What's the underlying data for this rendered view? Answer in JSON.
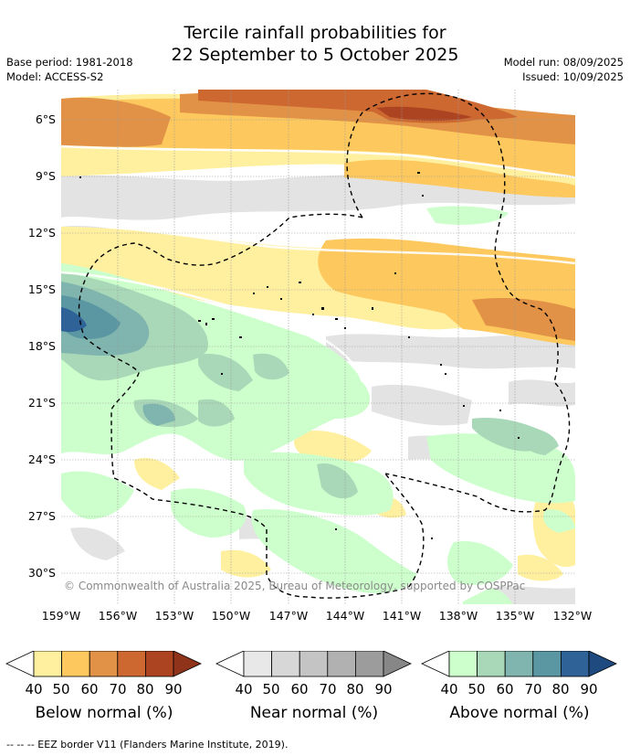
{
  "header": {
    "title_line1": "Tercile rainfall probabilities for",
    "title_line2": "22 September to 5 October 2025",
    "base_period": "Base period: 1981-2018",
    "model": "Model: ACCESS-S2",
    "model_run": "Model run: 08/09/2025",
    "issued": "Issued: 10/09/2025"
  },
  "map": {
    "lat_labels": [
      "6°S",
      "9°S",
      "12°S",
      "15°S",
      "18°S",
      "21°S",
      "24°S",
      "27°S",
      "30°S"
    ],
    "lon_labels": [
      "159°W",
      "156°W",
      "153°W",
      "150°W",
      "147°W",
      "144°W",
      "141°W",
      "138°W",
      "135°W",
      "132°W"
    ],
    "copyright": "© Commonwealth of Australia 2025, Bureau of Meteorology, supported by COSPPac"
  },
  "colorbars": [
    {
      "title": "Below normal (%)",
      "ticks": [
        "40",
        "50",
        "60",
        "70",
        "80",
        "90"
      ],
      "colors": [
        "#fff0a0",
        "#fdc85e",
        "#e29246",
        "#cd6830",
        "#ac4421",
        "#8f331a"
      ]
    },
    {
      "title": "Near normal (%)",
      "ticks": [
        "40",
        "50",
        "60",
        "70",
        "80",
        "90"
      ],
      "colors": [
        "#e8e8e8",
        "#d7d7d7",
        "#c4c4c4",
        "#b1b1b1",
        "#9c9c9c",
        "#878787"
      ]
    },
    {
      "title": "Above normal (%)",
      "ticks": [
        "40",
        "50",
        "60",
        "70",
        "80",
        "90"
      ],
      "colors": [
        "#ccffcc",
        "#a8d8b8",
        "#7fb5ae",
        "#5b97a3",
        "#2f6297",
        "#1e4a80"
      ]
    }
  ],
  "footer": {
    "eez_note": "-- -- -- EEZ border V11 (Flanders Marine Institute, 2019)."
  }
}
